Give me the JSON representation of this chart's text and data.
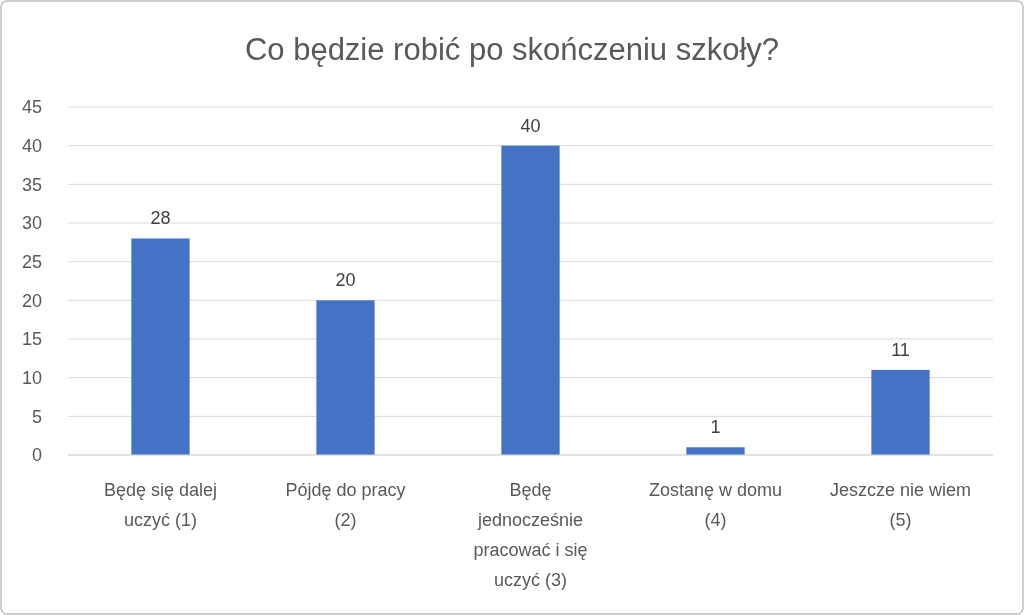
{
  "chart_data": {
    "type": "bar",
    "title": "Co będzie robić po skończeniu szkoły?",
    "categories": [
      "Będę się dalej uczyć (1)",
      "Pójdę do pracy (2)",
      "Będę jednocześnie pracować i się uczyć (3)",
      "Zostanę w domu (4)",
      "Jeszcze nie wiem (5)"
    ],
    "values": [
      28,
      20,
      40,
      1,
      11
    ],
    "color": "#4472c4",
    "ylim": [
      0,
      45
    ],
    "yticks": [
      0,
      5,
      10,
      15,
      20,
      25,
      30,
      35,
      40,
      45
    ],
    "grid": "y",
    "data_labels": true
  }
}
